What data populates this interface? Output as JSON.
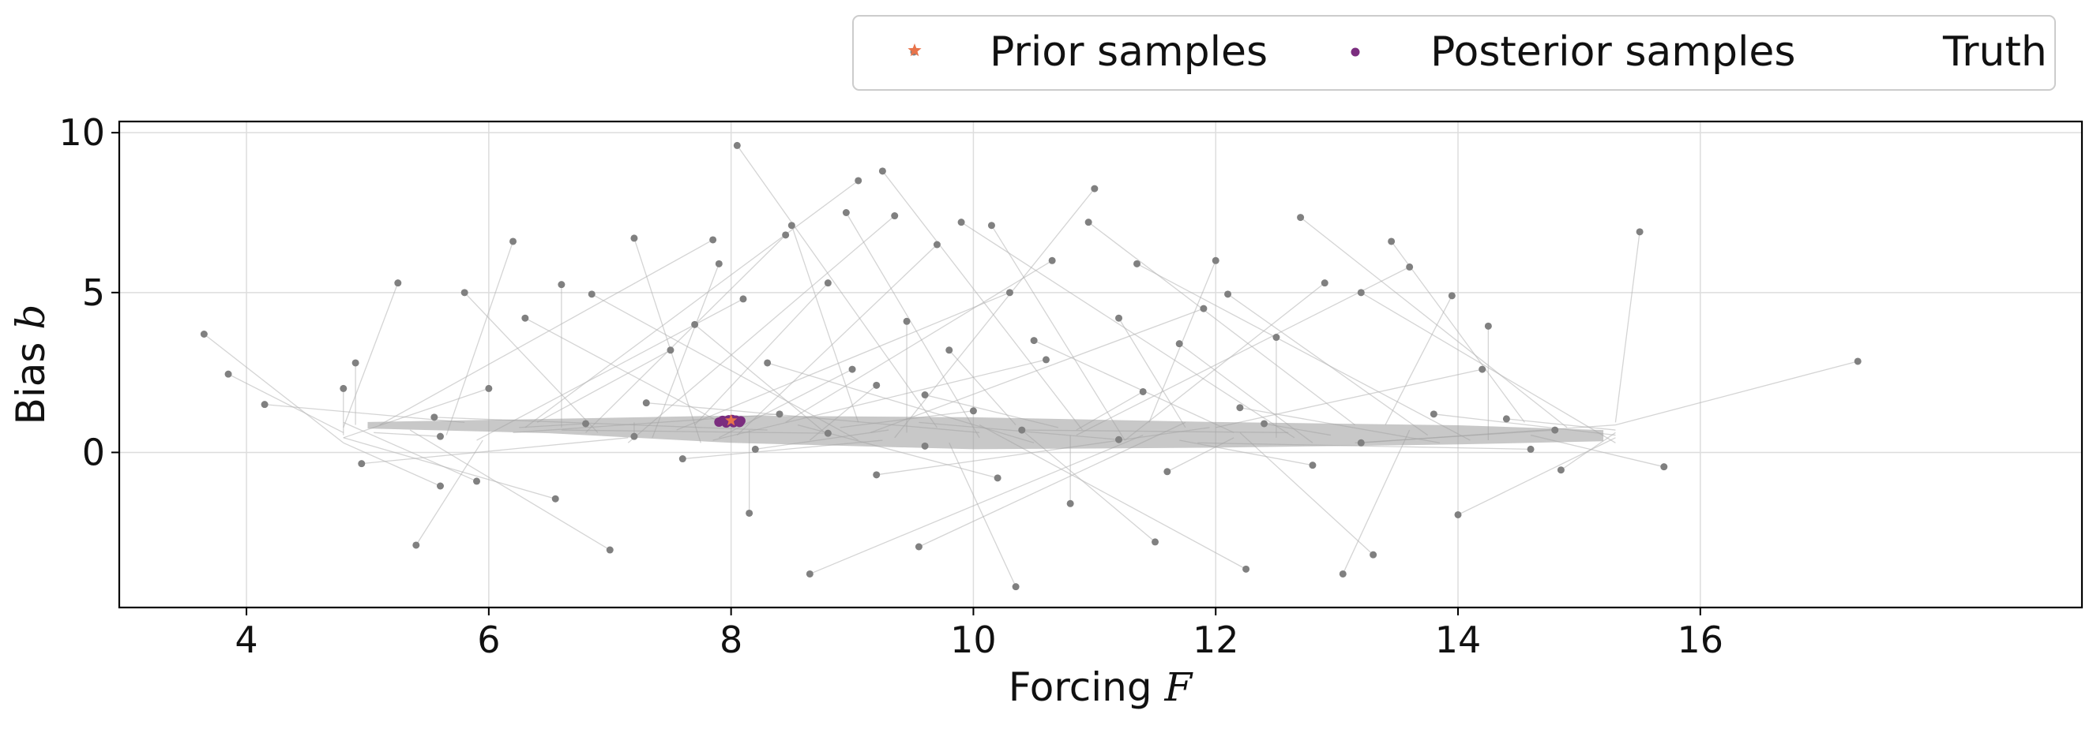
{
  "chart_data": {
    "type": "scatter",
    "title": "",
    "xlabel": {
      "text": "Forcing",
      "symbol": "F"
    },
    "ylabel": {
      "text": "Bias",
      "symbol": "b"
    },
    "xlim": [
      2.95,
      19.15
    ],
    "ylim": [
      -4.85,
      10.35
    ],
    "x_ticks": [
      4,
      6,
      8,
      10,
      12,
      14,
      16
    ],
    "y_ticks": [
      0,
      5,
      10
    ],
    "grid": true,
    "legend": {
      "placement": "top-right, above plot",
      "entries": [
        {
          "label": "Prior samples",
          "marker": "dot",
          "color": "#808080"
        },
        {
          "label": "Posterior samples",
          "marker": "dot",
          "color": "#7b2d7f"
        },
        {
          "label": "Truth",
          "marker": "star",
          "color": "#e8734a"
        }
      ]
    },
    "series": [
      {
        "name": "Prior samples",
        "color": "#808080",
        "points": [
          [
            3.65,
            3.7
          ],
          [
            3.85,
            2.45
          ],
          [
            4.15,
            1.5
          ],
          [
            4.8,
            2.0
          ],
          [
            4.9,
            2.8
          ],
          [
            4.95,
            -0.35
          ],
          [
            5.25,
            5.3
          ],
          [
            5.4,
            -2.9
          ],
          [
            5.55,
            1.1
          ],
          [
            5.6,
            -1.05
          ],
          [
            5.8,
            5.0
          ],
          [
            5.9,
            -0.9
          ],
          [
            6.2,
            6.6
          ],
          [
            6.3,
            4.2
          ],
          [
            6.55,
            -1.45
          ],
          [
            6.6,
            5.25
          ],
          [
            6.85,
            4.95
          ],
          [
            7.0,
            -3.05
          ],
          [
            7.2,
            6.7
          ],
          [
            7.3,
            1.55
          ],
          [
            7.5,
            3.2
          ],
          [
            7.7,
            4.0
          ],
          [
            7.85,
            6.65
          ],
          [
            7.9,
            5.9
          ],
          [
            8.05,
            9.6
          ],
          [
            8.1,
            4.8
          ],
          [
            8.15,
            -1.9
          ],
          [
            8.3,
            2.8
          ],
          [
            8.45,
            6.8
          ],
          [
            8.5,
            7.1
          ],
          [
            8.65,
            -3.8
          ],
          [
            8.8,
            5.3
          ],
          [
            8.95,
            7.5
          ],
          [
            9.05,
            8.5
          ],
          [
            9.2,
            2.1
          ],
          [
            9.25,
            8.8
          ],
          [
            9.35,
            7.4
          ],
          [
            9.45,
            4.1
          ],
          [
            9.55,
            -2.95
          ],
          [
            9.7,
            6.5
          ],
          [
            9.8,
            3.2
          ],
          [
            9.9,
            7.2
          ],
          [
            10.0,
            1.3
          ],
          [
            10.15,
            7.1
          ],
          [
            10.3,
            5.0
          ],
          [
            10.35,
            -4.2
          ],
          [
            10.5,
            3.5
          ],
          [
            10.65,
            6.0
          ],
          [
            10.8,
            -1.6
          ],
          [
            10.95,
            7.2
          ],
          [
            11.0,
            8.25
          ],
          [
            11.2,
            4.2
          ],
          [
            11.35,
            5.9
          ],
          [
            11.5,
            -2.8
          ],
          [
            11.7,
            3.4
          ],
          [
            11.9,
            4.5
          ],
          [
            12.0,
            6.0
          ],
          [
            12.1,
            4.95
          ],
          [
            12.25,
            -3.65
          ],
          [
            12.5,
            3.6
          ],
          [
            12.7,
            7.35
          ],
          [
            12.9,
            5.3
          ],
          [
            13.05,
            -3.8
          ],
          [
            13.2,
            5.0
          ],
          [
            13.3,
            -3.2
          ],
          [
            13.45,
            6.6
          ],
          [
            13.6,
            5.8
          ],
          [
            13.95,
            4.9
          ],
          [
            14.0,
            -1.95
          ],
          [
            14.2,
            2.6
          ],
          [
            14.25,
            3.95
          ],
          [
            14.4,
            1.05
          ],
          [
            14.8,
            0.7
          ],
          [
            14.85,
            -0.55
          ],
          [
            15.5,
            6.9
          ],
          [
            15.7,
            -0.45
          ],
          [
            17.3,
            2.85
          ],
          [
            6.0,
            2.0
          ],
          [
            6.8,
            0.9
          ],
          [
            7.6,
            -0.2
          ],
          [
            8.8,
            0.6
          ],
          [
            9.6,
            0.2
          ],
          [
            10.4,
            0.7
          ],
          [
            11.2,
            0.4
          ],
          [
            12.4,
            0.9
          ],
          [
            13.2,
            0.3
          ],
          [
            9.0,
            2.6
          ],
          [
            9.6,
            1.8
          ],
          [
            10.6,
            2.9
          ],
          [
            11.4,
            1.9
          ],
          [
            12.2,
            1.4
          ],
          [
            8.4,
            1.2
          ],
          [
            7.2,
            0.5
          ],
          [
            13.8,
            1.2
          ],
          [
            10.2,
            -0.8
          ],
          [
            11.6,
            -0.6
          ],
          [
            9.2,
            -0.7
          ],
          [
            12.8,
            -0.4
          ],
          [
            8.2,
            0.1
          ],
          [
            14.6,
            0.1
          ],
          [
            5.6,
            0.5
          ]
        ]
      },
      {
        "name": "Posterior samples",
        "color": "#7b2d7f",
        "points": [
          [
            7.9,
            0.95
          ],
          [
            7.93,
            1.0
          ],
          [
            7.96,
            0.92
          ],
          [
            7.98,
            1.02
          ],
          [
            8.0,
            0.97
          ],
          [
            8.02,
            0.93
          ],
          [
            8.04,
            1.01
          ],
          [
            8.06,
            0.96
          ],
          [
            8.08,
            0.99
          ],
          [
            7.95,
            0.98
          ],
          [
            8.01,
            1.03
          ],
          [
            8.07,
            0.94
          ]
        ]
      },
      {
        "name": "Truth",
        "color": "#e8734a",
        "points": [
          [
            8.0,
            1.0
          ]
        ]
      }
    ]
  }
}
